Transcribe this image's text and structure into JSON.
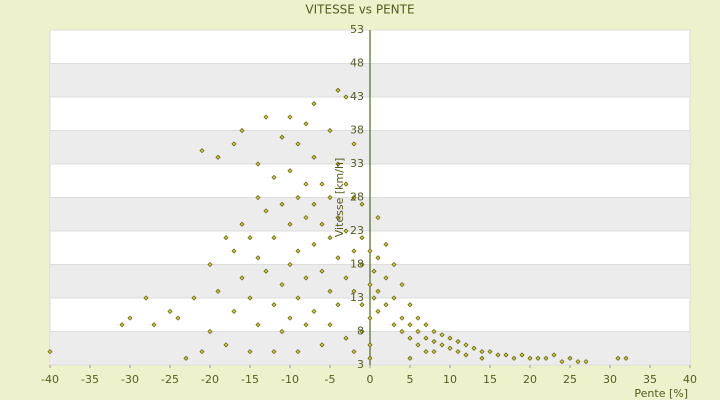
{
  "chart_data": {
    "type": "scatter",
    "title": "VITESSE vs PENTE",
    "x_label": "Pente [%]",
    "y_label": "Vitesse [km/h]",
    "xlim": [
      -40,
      40
    ],
    "xticks": [
      -40,
      -35,
      -30,
      -25,
      -20,
      -15,
      -10,
      -5,
      0,
      5,
      10,
      15,
      20,
      25,
      30,
      35,
      40
    ],
    "ylim": [
      3,
      53
    ],
    "yticks": [
      3,
      8,
      13,
      18,
      23,
      28,
      33,
      38,
      43,
      48,
      53
    ],
    "grid": true,
    "color": "#666600",
    "x": [
      -40,
      -31,
      -30,
      -28,
      -27,
      -25,
      -24,
      -23,
      -22,
      -21,
      -21,
      -20,
      -20,
      -19,
      -19,
      -18,
      -18,
      -17,
      -17,
      -17,
      -16,
      -16,
      -16,
      -15,
      -15,
      -15,
      -14,
      -14,
      -14,
      -14,
      -13,
      -13,
      -13,
      -12,
      -12,
      -12,
      -12,
      -11,
      -11,
      -11,
      -11,
      -10,
      -10,
      -10,
      -10,
      -10,
      -9,
      -9,
      -9,
      -9,
      -9,
      -8,
      -8,
      -8,
      -8,
      -8,
      -7,
      -7,
      -7,
      -7,
      -7,
      -6,
      -6,
      -6,
      -6,
      -5,
      -5,
      -5,
      -5,
      -5,
      -4,
      -4,
      -4,
      -4,
      -4,
      -3,
      -3,
      -3,
      -3,
      -3,
      -2,
      -2,
      -2,
      -2,
      -2,
      -1,
      -1,
      -1,
      -1,
      -1,
      0,
      0,
      0,
      0,
      0,
      0.5,
      0.5,
      1,
      1,
      1,
      1,
      2,
      2,
      2,
      3,
      3,
      3,
      4,
      4,
      4,
      5,
      5,
      5,
      5,
      6,
      6,
      6,
      7,
      7,
      7,
      8,
      8,
      8,
      9,
      9,
      10,
      10,
      11,
      11,
      12,
      12,
      13,
      14,
      14,
      15,
      16,
      17,
      18,
      19,
      20,
      21,
      22,
      23,
      24,
      25,
      26,
      27,
      31,
      32
    ],
    "y": [
      5,
      9,
      10,
      13,
      9,
      11,
      10,
      4,
      13,
      5,
      35,
      18,
      8,
      34,
      14,
      22,
      6,
      36,
      20,
      11,
      38,
      24,
      16,
      22,
      13,
      5,
      33,
      28,
      19,
      9,
      40,
      26,
      17,
      31,
      22,
      12,
      5,
      37,
      27,
      15,
      8,
      40,
      32,
      24,
      18,
      10,
      36,
      28,
      20,
      13,
      5,
      39,
      30,
      25,
      16,
      9,
      42,
      34,
      27,
      21,
      11,
      30,
      24,
      17,
      6,
      38,
      28,
      22,
      14,
      9,
      44,
      33,
      25,
      19,
      12,
      43,
      30,
      23,
      16,
      7,
      36,
      28,
      20,
      14,
      5,
      27,
      22,
      18,
      12,
      8,
      20,
      15,
      10,
      6,
      4,
      17,
      13,
      25,
      19,
      14,
      11,
      21,
      16,
      12,
      18,
      13,
      9,
      15,
      10,
      8,
      12,
      9,
      7,
      4,
      10,
      8,
      6,
      9,
      7,
      5,
      8,
      6.5,
      5,
      7.5,
      6,
      7,
      5.5,
      6.5,
      5,
      6,
      4.5,
      5.5,
      5,
      4,
      5,
      4.5,
      4.5,
      4,
      4.5,
      4,
      4,
      4,
      4.5,
      3.5,
      4,
      3.5,
      3.5,
      4,
      4
    ]
  }
}
